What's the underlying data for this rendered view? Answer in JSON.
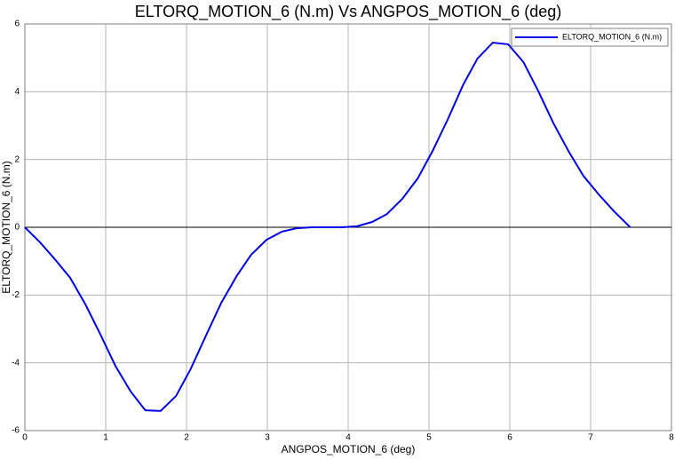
{
  "chart_data": {
    "type": "line",
    "title": "ELTORQ_MOTION_6  (N.m) Vs ANGPOS_MOTION_6 (deg)",
    "x_label": "ANGPOS_MOTION_6 (deg)",
    "y_label": "ELTORQ_MOTION_6  (N.m)",
    "x": [
      0,
      0.19,
      0.37,
      0.56,
      0.75,
      0.93,
      1.12,
      1.31,
      1.49,
      1.68,
      1.87,
      2.05,
      2.24,
      2.43,
      2.62,
      2.8,
      2.99,
      3.18,
      3.36,
      3.55,
      3.74,
      3.92,
      4.11,
      4.3,
      4.48,
      4.67,
      4.86,
      5.04,
      5.23,
      5.42,
      5.6,
      5.79,
      5.98,
      6.17,
      6.35,
      6.54,
      6.73,
      6.91,
      7.1,
      7.29,
      7.49
    ],
    "series": [
      {
        "name": "ELTORQ_MOTION_6 (N.m)",
        "color": "#0000e6",
        "values": [
          0,
          -0.45,
          -0.94,
          -1.49,
          -2.28,
          -3.14,
          -4.09,
          -4.85,
          -5.4,
          -5.42,
          -4.98,
          -4.19,
          -3.2,
          -2.23,
          -1.44,
          -0.81,
          -0.37,
          -0.13,
          -0.03,
          0,
          0,
          0,
          0.03,
          0.16,
          0.39,
          0.84,
          1.44,
          2.23,
          3.17,
          4.19,
          4.98,
          5.45,
          5.4,
          4.87,
          4.03,
          3.07,
          2.23,
          1.52,
          0.97,
          0.47,
          0
        ]
      }
    ],
    "xlim": [
      0,
      8
    ],
    "xticks": [
      0,
      1,
      2,
      3,
      4,
      5,
      6,
      7,
      8
    ],
    "ylim": [
      -6,
      6
    ],
    "yticks": [
      -6,
      -4,
      -2,
      0,
      2,
      4,
      6
    ],
    "grid": true,
    "legend": "top-right"
  }
}
